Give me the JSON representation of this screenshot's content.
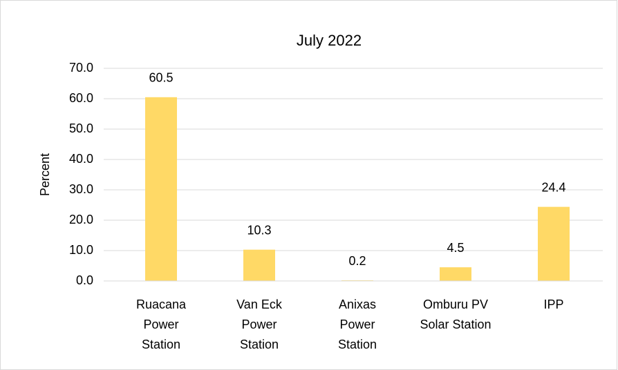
{
  "chart_data": {
    "type": "bar",
    "title": "July 2022",
    "y_label": "Percent",
    "categories": [
      "Ruacana Power Station",
      "Van Eck Power Station",
      "Anixas Power Station",
      "Omburu PV Solar Station",
      "IPP"
    ],
    "values": [
      60.5,
      10.3,
      0.2,
      4.5,
      24.4
    ],
    "value_labels": [
      "60.5",
      "10.3",
      "0.2",
      "4.5",
      "24.4"
    ],
    "color": "#ffd966",
    "ylim": [
      0,
      70
    ],
    "yticks": [
      {
        "value": 0,
        "label": "0.0"
      },
      {
        "value": 10,
        "label": "10.0"
      },
      {
        "value": 20,
        "label": "20.0"
      },
      {
        "value": 30,
        "label": "30.0"
      },
      {
        "value": 40,
        "label": "40.0"
      },
      {
        "value": 50,
        "label": "50.0"
      },
      {
        "value": 60,
        "label": "60.0"
      },
      {
        "value": 70,
        "label": "70.0"
      }
    ],
    "grid": true
  }
}
